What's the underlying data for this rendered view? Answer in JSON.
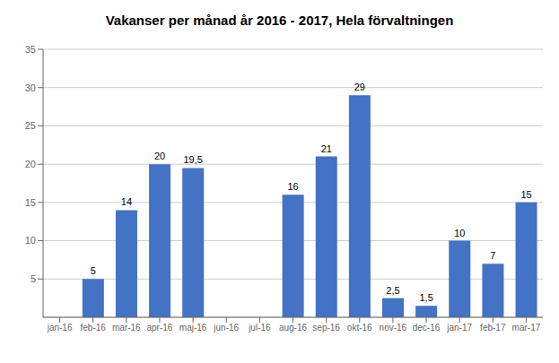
{
  "chart_data": {
    "type": "bar",
    "title": "Vakanser per månad år 2016 - 2017, Hela förvaltningen",
    "categories": [
      "jan-16",
      "feb-16",
      "mar-16",
      "apr-16",
      "maj-16",
      "jun-16",
      "jul-16",
      "aug-16",
      "sep-16",
      "okt-16",
      "nov-16",
      "dec-16",
      "jan-17",
      "feb-17",
      "mar-17"
    ],
    "values": [
      0,
      5,
      14,
      20,
      19.5,
      0,
      0,
      16,
      21,
      29,
      2.5,
      1.5,
      10,
      7,
      15
    ],
    "value_labels": [
      null,
      "5",
      "14",
      "20",
      "19,5",
      null,
      null,
      "16",
      "21",
      "29",
      "2,5",
      "1,5",
      "10",
      "7",
      "15"
    ],
    "data_labels": true,
    "color": "#4472C4",
    "ylim": [
      0,
      35
    ],
    "yticks": [
      5,
      10,
      15,
      20,
      25,
      30,
      35
    ],
    "grid": true
  }
}
